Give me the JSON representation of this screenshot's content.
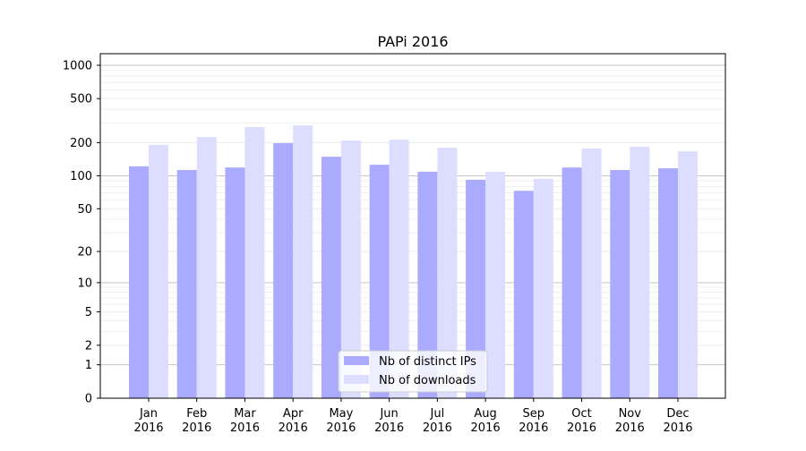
{
  "chart_data": {
    "type": "bar",
    "title": "PAPi 2016",
    "xlabel": "",
    "ylabel": "",
    "yscale": "log(1+y)",
    "ylim": [
      0,
      1300
    ],
    "yticks": [
      0,
      1,
      2,
      5,
      10,
      20,
      50,
      100,
      200,
      500,
      1000
    ],
    "grid": true,
    "legend_position": "bottom-center",
    "categories": [
      "Jan\n2016",
      "Feb\n2016",
      "Mar\n2016",
      "Apr\n2016",
      "May\n2016",
      "Jun\n2016",
      "Jul\n2016",
      "Aug\n2016",
      "Sep\n2016",
      "Oct\n2016",
      "Nov\n2016",
      "Dec\n2016"
    ],
    "series": [
      {
        "name": "Nb of distinct IPs",
        "color": "#aaaaff",
        "values": [
          122,
          113,
          119,
          198,
          149,
          126,
          109,
          92,
          73,
          119,
          113,
          117
        ]
      },
      {
        "name": "Nb of downloads",
        "color": "#ddddff",
        "values": [
          191,
          225,
          277,
          287,
          209,
          213,
          180,
          109,
          94,
          177,
          184,
          167
        ]
      }
    ]
  }
}
